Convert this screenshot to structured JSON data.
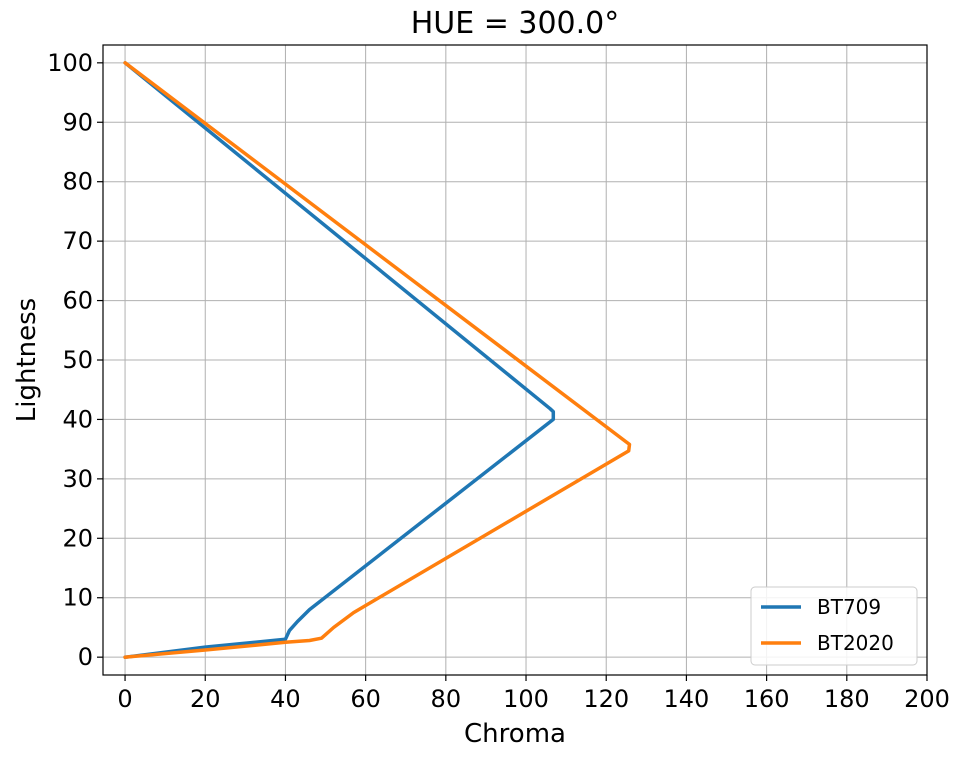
{
  "chart_data": {
    "type": "line",
    "title": "HUE = 300.0°",
    "xlabel": "Chroma",
    "ylabel": "Lightness",
    "xlim": [
      -5.5,
      200
    ],
    "ylim": [
      -3,
      103
    ],
    "xticks": [
      0,
      20,
      40,
      60,
      80,
      100,
      120,
      140,
      160,
      180,
      200
    ],
    "yticks": [
      0,
      10,
      20,
      30,
      40,
      50,
      60,
      70,
      80,
      90,
      100
    ],
    "grid": true,
    "legend": "bottom-right",
    "series": [
      {
        "name": "BT709",
        "color": "#1f77b4",
        "points": [
          [
            0,
            0
          ],
          [
            20,
            1.7
          ],
          [
            40,
            3
          ],
          [
            41,
            4.5
          ],
          [
            43,
            6
          ],
          [
            46,
            8
          ],
          [
            106.8,
            40
          ],
          [
            106.8,
            41.3
          ],
          [
            106,
            41.8
          ],
          [
            0,
            100
          ]
        ]
      },
      {
        "name": "BT2020",
        "color": "#ff7f0e",
        "points": [
          [
            0,
            0
          ],
          [
            20,
            1.2
          ],
          [
            40,
            2.5
          ],
          [
            46,
            2.8
          ],
          [
            49,
            3.2
          ],
          [
            52,
            5
          ],
          [
            57,
            7.5
          ],
          [
            125.6,
            34.7
          ],
          [
            125.8,
            35.8
          ],
          [
            125,
            36.2
          ],
          [
            0,
            100
          ]
        ]
      }
    ]
  }
}
